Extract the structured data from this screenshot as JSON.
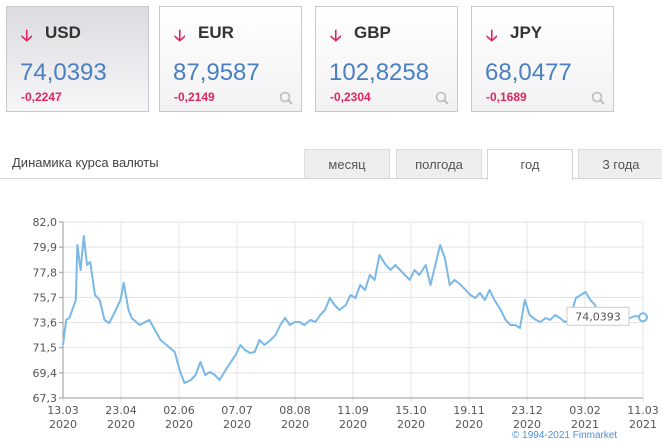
{
  "currencies": [
    {
      "code": "USD",
      "rate": "74,0393",
      "change": "-0,2247",
      "direction": "down"
    },
    {
      "code": "EUR",
      "rate": "87,9587",
      "change": "-0,2149",
      "direction": "down"
    },
    {
      "code": "GBP",
      "rate": "102,8258",
      "change": "-0,2304",
      "direction": "down"
    },
    {
      "code": "JPY",
      "rate": "68,0477",
      "change": "-0,1689",
      "direction": "down"
    }
  ],
  "section_title": "Динамика курса валюты",
  "tabs": [
    "месяц",
    "полгода",
    "год",
    "3 года"
  ],
  "selected_tab": "год",
  "colors": {
    "accent": "#4a7fc1",
    "negative": "#e0245e",
    "line": "#7ab8e6"
  },
  "footer": "© 1994-2021 Finmarket",
  "chart_data": {
    "type": "line",
    "title": "",
    "ylim": [
      67.3,
      82.0
    ],
    "y_ticks": [
      "82,0",
      "79,9",
      "77,8",
      "75,7",
      "73,6",
      "71,5",
      "69,4",
      "67,3"
    ],
    "x_ticks": [
      [
        "13.03",
        "2020"
      ],
      [
        "23.04",
        "2020"
      ],
      [
        "02.06",
        "2020"
      ],
      [
        "07.07",
        "2020"
      ],
      [
        "08.08",
        "2020"
      ],
      [
        "11.09",
        "2020"
      ],
      [
        "15.10",
        "2020"
      ],
      [
        "19.11",
        "2020"
      ],
      [
        "23.12",
        "2020"
      ],
      [
        "03.02",
        "2021"
      ],
      [
        "11.03",
        "2021"
      ]
    ],
    "x_days_range": [
      0,
      363
    ],
    "tooltip": "74,0393",
    "series": [
      {
        "name": "USD",
        "days": [
          0,
          2,
          4,
          8,
          9,
          11,
          13,
          15,
          17,
          20,
          23,
          26,
          29,
          33,
          36,
          38,
          41,
          43,
          48,
          54,
          61,
          67,
          70,
          73,
          76,
          80,
          83,
          86,
          89,
          92,
          95,
          98,
          101,
          105,
          108,
          111,
          114,
          117,
          120,
          123,
          126,
          130,
          133,
          136,
          139,
          142,
          145,
          148,
          151,
          155,
          158,
          161,
          164,
          167,
          170,
          173,
          177,
          180,
          183,
          186,
          189,
          192,
          195,
          198,
          202,
          205,
          208,
          211,
          214,
          217,
          220,
          223,
          227,
          230,
          233,
          236,
          239,
          242,
          245,
          249,
          252,
          255,
          258,
          261,
          264,
          267,
          270,
          274,
          277,
          280,
          283,
          286,
          289,
          292,
          296,
          299,
          302,
          305,
          308,
          311,
          314,
          317,
          321,
          324,
          327,
          330,
          333,
          336,
          339,
          342,
          346,
          349,
          352,
          355,
          358,
          363
        ],
        "values": [
          71.73,
          73.82,
          73.98,
          75.49,
          80.08,
          77.99,
          80.83,
          78.41,
          78.66,
          75.9,
          75.49,
          73.82,
          73.56,
          74.65,
          75.49,
          76.91,
          74.65,
          73.98,
          73.4,
          73.82,
          72.15,
          71.48,
          71.14,
          69.64,
          68.55,
          68.8,
          69.22,
          70.31,
          69.22,
          69.47,
          69.22,
          68.8,
          69.47,
          70.31,
          70.89,
          71.73,
          71.31,
          71.06,
          71.14,
          72.15,
          71.73,
          72.15,
          72.56,
          73.4,
          73.98,
          73.4,
          73.65,
          73.65,
          73.4,
          73.82,
          73.65,
          74.23,
          74.65,
          75.65,
          75.07,
          74.65,
          75.07,
          75.9,
          75.65,
          76.74,
          76.32,
          77.57,
          77.16,
          79.24,
          78.41,
          77.99,
          78.41,
          77.99,
          77.57,
          77.16,
          77.99,
          77.57,
          78.41,
          76.74,
          78.41,
          80.08,
          78.99,
          76.74,
          77.16,
          76.74,
          76.32,
          75.9,
          75.65,
          76.07,
          75.49,
          76.32,
          75.49,
          74.65,
          73.82,
          73.4,
          73.4,
          73.15,
          75.49,
          74.23,
          73.82,
          73.65,
          73.98,
          73.82,
          74.23,
          73.98,
          73.65,
          73.82,
          75.65,
          75.9,
          76.15,
          75.49,
          75.07,
          73.98,
          73.65,
          73.98,
          73.82,
          74.23,
          73.82,
          73.98,
          74.15,
          74.04
        ]
      }
    ]
  }
}
